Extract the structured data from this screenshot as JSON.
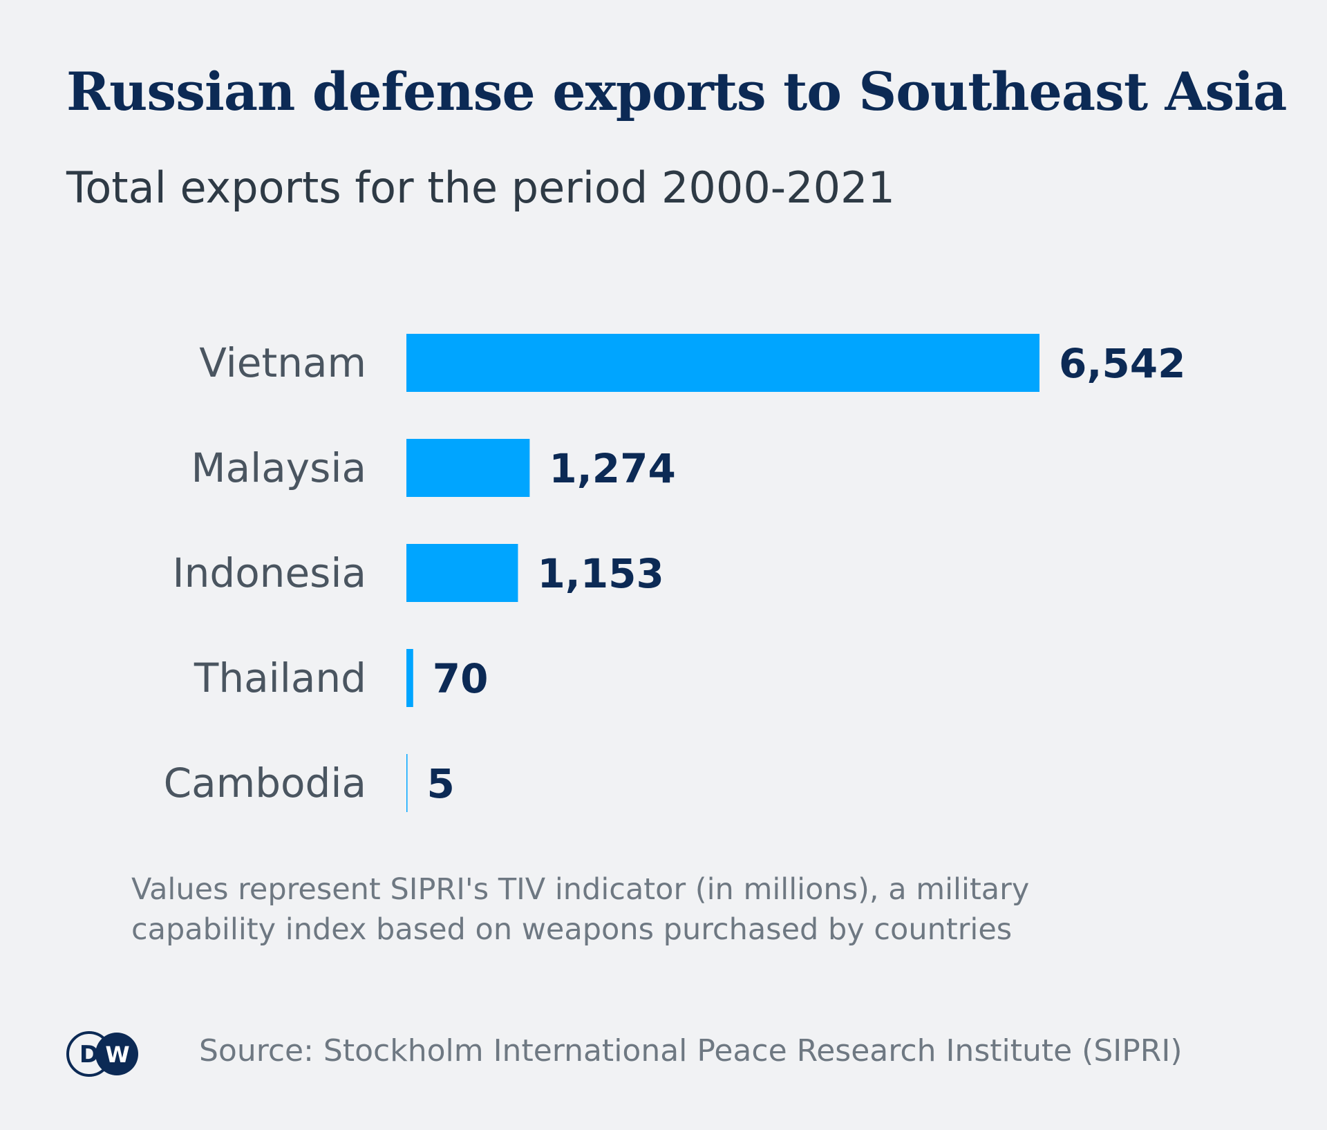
{
  "title": "Russian defense exports to Southeast Asia",
  "subtitle": "Total exports for the period 2000-2021",
  "chart_data": {
    "type": "bar",
    "orientation": "horizontal",
    "categories": [
      "Vietnam",
      "Malaysia",
      "Indonesia",
      "Thailand",
      "Cambodia"
    ],
    "values": [
      6542,
      1274,
      1153,
      70,
      5
    ],
    "value_labels": [
      "6,542",
      "1,274",
      "1,153",
      "70",
      "5"
    ],
    "xlim": [
      0,
      6542
    ],
    "grid": false,
    "bar_color": "#00a5ff",
    "value_color": "#0c2a55"
  },
  "note": {
    "line1": "Values represent SIPRI's TIV indicator (in millions), a military",
    "line2": "capability index based on weapons purchased by countries"
  },
  "footer": {
    "logo_text": "DW",
    "logo_icon": "dw-logo-icon",
    "source": "Source: Stockholm International Peace Research Institute (SIPRI)"
  },
  "colors": {
    "background": "#f1f2f4",
    "title": "#0c2a55",
    "bar": "#00a5ff"
  }
}
